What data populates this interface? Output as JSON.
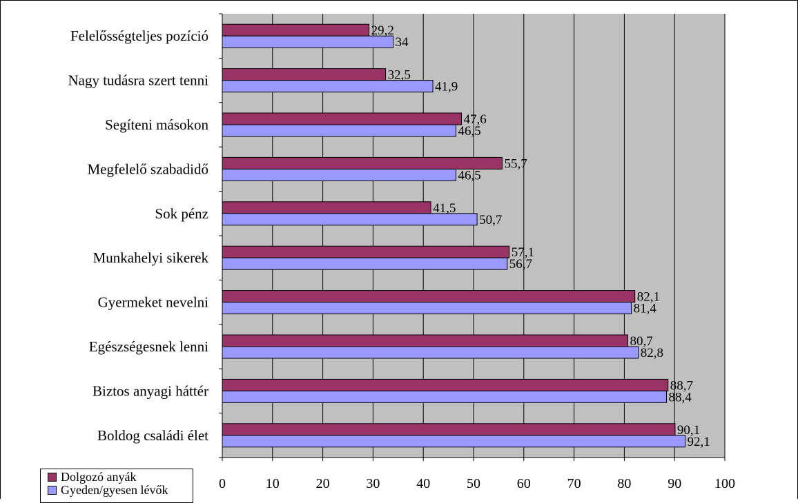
{
  "chart_data": {
    "type": "bar",
    "orientation": "horizontal",
    "categories": [
      "Felelősségteljes pozíció",
      "Nagy tudásra szert tenni",
      "Segíteni másokon",
      "Megfelelő szabadidő",
      "Sok pénz",
      "Munkahelyi sikerek",
      "Gyermeket nevelni",
      "Egészségesnek lenni",
      "Biztos anyagi háttér",
      "Boldog családi élet"
    ],
    "series": [
      {
        "name": "Dolgozó anyák",
        "color": "#993366",
        "values": [
          29.2,
          32.5,
          47.6,
          55.7,
          41.5,
          57.1,
          82.1,
          80.7,
          88.7,
          90.1
        ],
        "labels": [
          "29,2",
          "32,5",
          "47,6",
          "55,7",
          "41,5",
          "57,1",
          "82,1",
          "80,7",
          "88,7",
          "90,1"
        ]
      },
      {
        "name": "Gyeden/gyesen lévők",
        "color": "#9999FF",
        "values": [
          34,
          41.9,
          46.5,
          46.5,
          50.7,
          56.7,
          81.4,
          82.8,
          88.4,
          92.1
        ],
        "labels": [
          "34",
          "41,9",
          "46,5",
          "46,5",
          "50,7",
          "56,7",
          "81,4",
          "82,8",
          "88,4",
          "92,1"
        ]
      }
    ],
    "xlim": [
      0,
      100
    ],
    "xticks": [
      0,
      10,
      20,
      30,
      40,
      50,
      60,
      70,
      80,
      90,
      100
    ],
    "xticklabels": [
      "0",
      "10",
      "20",
      "30",
      "40",
      "50",
      "60",
      "70",
      "80",
      "90",
      "100"
    ],
    "plot_background": "#C0C0C0",
    "grid": true,
    "legend_position": "bottom-left"
  }
}
